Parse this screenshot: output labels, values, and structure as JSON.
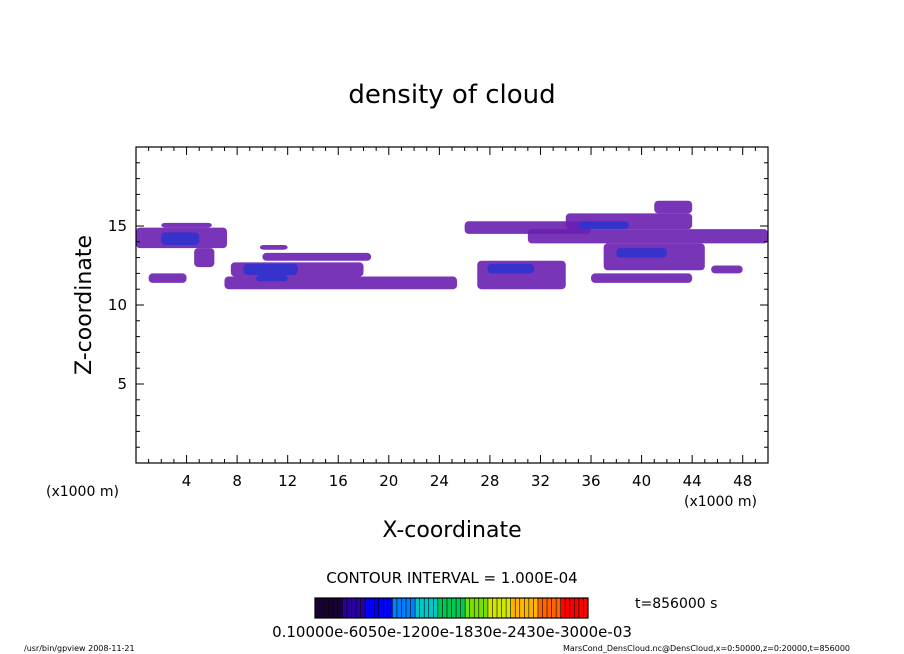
{
  "chart_data": {
    "type": "heatmap",
    "title": "density of cloud",
    "xlabel": "X-coordinate",
    "ylabel": "Z-coordinate",
    "x_unit_left": "(x1000 m)",
    "x_unit_right": "(x1000 m)",
    "xlim": [
      0,
      50
    ],
    "ylim": [
      0,
      20
    ],
    "x_ticks": [
      4,
      8,
      12,
      16,
      20,
      24,
      28,
      32,
      36,
      40,
      44,
      48
    ],
    "x_tick_labels": [
      "4",
      "8",
      "12",
      "16",
      "20",
      "24",
      "28",
      "32",
      "36",
      "40",
      "44",
      "48"
    ],
    "y_ticks": [
      5,
      10,
      15
    ],
    "y_tick_labels": [
      "5",
      "10",
      "15"
    ],
    "contour_interval": "CONTOUR INTERVAL = 1.000E-04",
    "time_label": "t=856000 s",
    "colorbar_labels_text": "0.10000e-6050e-1200e-1830e-2430e-3000e-03",
    "colorbar_colors": [
      "#1a0033",
      "#2a00a0",
      "#0000ff",
      "#0080ff",
      "#00c8c8",
      "#00c850",
      "#78e000",
      "#d2e600",
      "#ffb400",
      "#ff6400",
      "#ff0000"
    ],
    "footer_left": "/usr/bin/gpview   2008-11-21",
    "footer_right": "MarsCond_DensCloud.nc@DensCloud,x=0:50000,z=0:20000,t=856000",
    "fill_colors": {
      "low": "#6a1fb0",
      "mid": "#3333cc",
      "high": "#2244ee"
    },
    "regions": [
      {
        "level": 1,
        "x0": 0.0,
        "x1": 7.2,
        "z0": 13.6,
        "z1": 14.9
      },
      {
        "level": 1,
        "x0": 2.0,
        "x1": 6.0,
        "z0": 14.9,
        "z1": 15.2
      },
      {
        "level": 1,
        "x0": 4.6,
        "x1": 6.2,
        "z0": 12.4,
        "z1": 13.6
      },
      {
        "level": 1,
        "x0": 1.0,
        "x1": 4.0,
        "z0": 11.4,
        "z1": 12.0
      },
      {
        "level": 2,
        "x0": 2.0,
        "x1": 5.0,
        "z0": 13.8,
        "z1": 14.6
      },
      {
        "level": 1,
        "x0": 7.0,
        "x1": 25.4,
        "z0": 11.0,
        "z1": 11.8
      },
      {
        "level": 1,
        "x0": 7.5,
        "x1": 18.0,
        "z0": 11.8,
        "z1": 12.7
      },
      {
        "level": 1,
        "x0": 10.0,
        "x1": 18.6,
        "z0": 12.8,
        "z1": 13.3
      },
      {
        "level": 1,
        "x0": 9.8,
        "x1": 12.0,
        "z0": 13.5,
        "z1": 13.8
      },
      {
        "level": 2,
        "x0": 8.5,
        "x1": 12.8,
        "z0": 11.9,
        "z1": 12.6
      },
      {
        "level": 2,
        "x0": 9.5,
        "x1": 12.0,
        "z0": 11.5,
        "z1": 11.9
      },
      {
        "level": 1,
        "x0": 27.0,
        "x1": 34.0,
        "z0": 11.0,
        "z1": 12.8
      },
      {
        "level": 2,
        "x0": 27.8,
        "x1": 31.5,
        "z0": 12.0,
        "z1": 12.6
      },
      {
        "level": 1,
        "x0": 26.0,
        "x1": 36.0,
        "z0": 14.5,
        "z1": 15.3
      },
      {
        "level": 1,
        "x0": 31.0,
        "x1": 50.0,
        "z0": 13.9,
        "z1": 14.8
      },
      {
        "level": 1,
        "x0": 34.0,
        "x1": 44.0,
        "z0": 14.8,
        "z1": 15.8
      },
      {
        "level": 1,
        "x0": 41.0,
        "x1": 44.0,
        "z0": 15.8,
        "z1": 16.6
      },
      {
        "level": 1,
        "x0": 37.0,
        "x1": 45.0,
        "z0": 12.2,
        "z1": 13.9
      },
      {
        "level": 1,
        "x0": 36.0,
        "x1": 44.0,
        "z0": 11.4,
        "z1": 12.0
      },
      {
        "level": 1,
        "x0": 45.5,
        "x1": 48.0,
        "z0": 12.0,
        "z1": 12.5
      },
      {
        "level": 2,
        "x0": 38.0,
        "x1": 42.0,
        "z0": 13.0,
        "z1": 13.6
      },
      {
        "level": 2,
        "x0": 35.0,
        "x1": 39.0,
        "z0": 14.8,
        "z1": 15.3
      }
    ]
  }
}
